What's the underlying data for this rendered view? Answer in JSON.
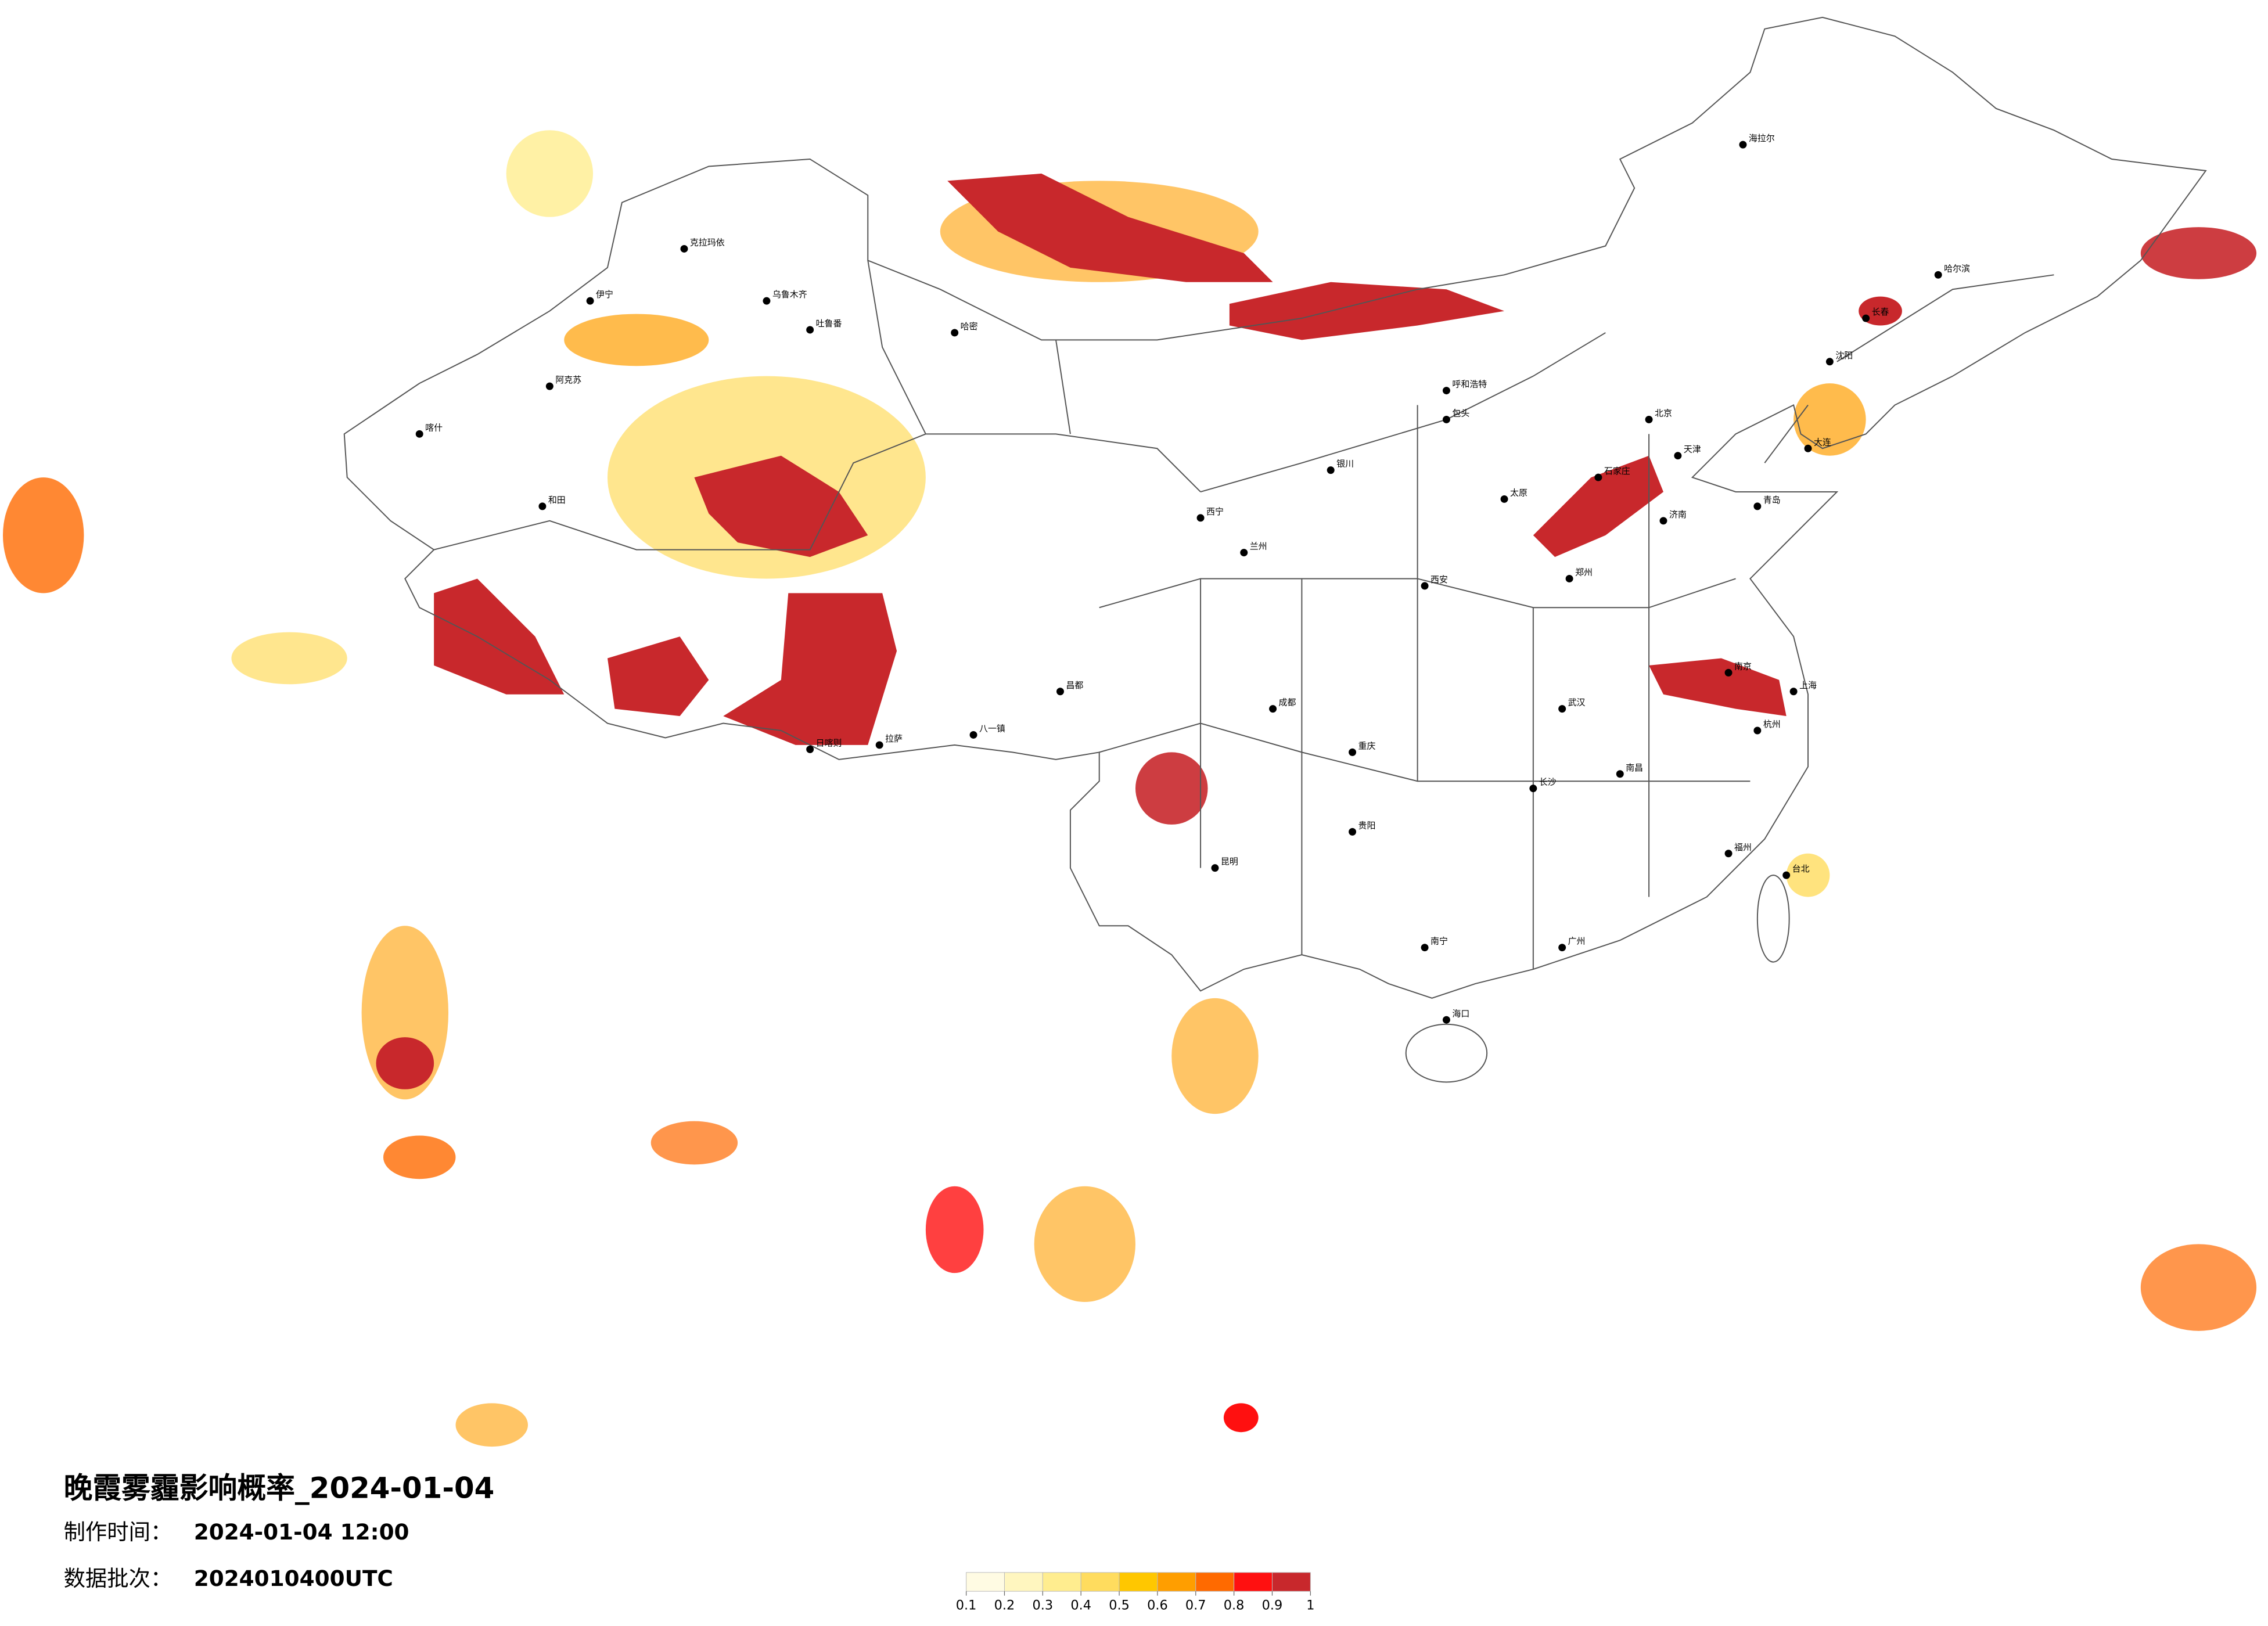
{
  "title": "晚霞雾霾影响概率_2024-01-04",
  "production_time_label": "制作时间：",
  "production_time": "2024-01-04 12:00",
  "data_batch_label": "数据批次：",
  "data_batch": "2024010400UTC",
  "legend": {
    "ticks": [
      0.1,
      0.2,
      0.3,
      0.4,
      0.5,
      0.6,
      0.7,
      0.8,
      0.9,
      1
    ],
    "colors": [
      "#fffbe3",
      "#fff6bf",
      "#ffed8f",
      "#ffdc5e",
      "#ffc700",
      "#ff9e00",
      "#ff6a00",
      "#ff1010",
      "#c8282c"
    ]
  },
  "cities": [
    "克拉玛依",
    "乌鲁木齐",
    "吐鲁番",
    "哈密",
    "伊宁",
    "阿克苏",
    "喀什",
    "和田",
    "日喀则",
    "拉萨",
    "八一镇",
    "昌都",
    "西宁",
    "兰州",
    "银川",
    "呼和浩特",
    "包头",
    "北京",
    "天津",
    "石家庄",
    "太原",
    "济南",
    "郑州",
    "西安",
    "成都",
    "重庆",
    "武汉",
    "南京",
    "上海",
    "杭州",
    "长沙",
    "南昌",
    "福州",
    "广州",
    "南宁",
    "贵阳",
    "昆明",
    "海口",
    "台北",
    "沈阳",
    "长春",
    "哈尔滨",
    "海拉尔",
    "大连",
    "青岛"
  ]
}
